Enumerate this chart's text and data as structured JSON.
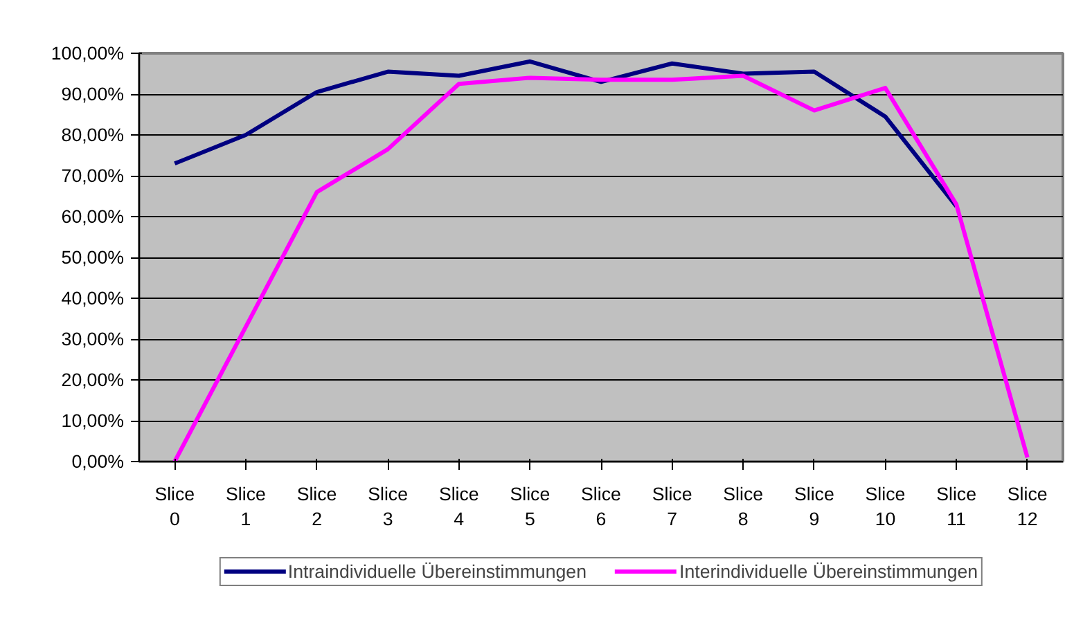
{
  "chart_data": {
    "type": "line",
    "categories": [
      "Slice 0",
      "Slice 1",
      "Slice 2",
      "Slice 3",
      "Slice 4",
      "Slice 5",
      "Slice 6",
      "Slice 7",
      "Slice 8",
      "Slice 9",
      "Slice 10",
      "Slice 11",
      "Slice 12"
    ],
    "series": [
      {
        "name": "Intraindividuelle Übereinstimmungen",
        "color": "#000080",
        "values": [
          73,
          80,
          90.5,
          95.5,
          94.5,
          98,
          93,
          97.5,
          95,
          95.5,
          84.5,
          62.5,
          null
        ]
      },
      {
        "name": "Interindividuelle Übereinstimmungen",
        "color": "#ff00ff",
        "values": [
          0,
          33,
          66,
          76.5,
          92.5,
          94,
          93.5,
          93.5,
          94.5,
          86,
          91.5,
          63,
          1
        ]
      }
    ],
    "ylim": [
      0,
      100
    ],
    "yticks": [
      {
        "value": 0,
        "label": "0,00%"
      },
      {
        "value": 10,
        "label": "10,00%"
      },
      {
        "value": 20,
        "label": "20,00%"
      },
      {
        "value": 30,
        "label": "30,00%"
      },
      {
        "value": 40,
        "label": "40,00%"
      },
      {
        "value": 50,
        "label": "50,00%"
      },
      {
        "value": 60,
        "label": "60,00%"
      },
      {
        "value": 70,
        "label": "70,00%"
      },
      {
        "value": 80,
        "label": "80,00%"
      },
      {
        "value": 90,
        "label": "90,00%"
      },
      {
        "value": 100,
        "label": "100,00%"
      }
    ],
    "grid": "y",
    "legend": "bottom",
    "marker": "none",
    "line_style": "solid"
  }
}
